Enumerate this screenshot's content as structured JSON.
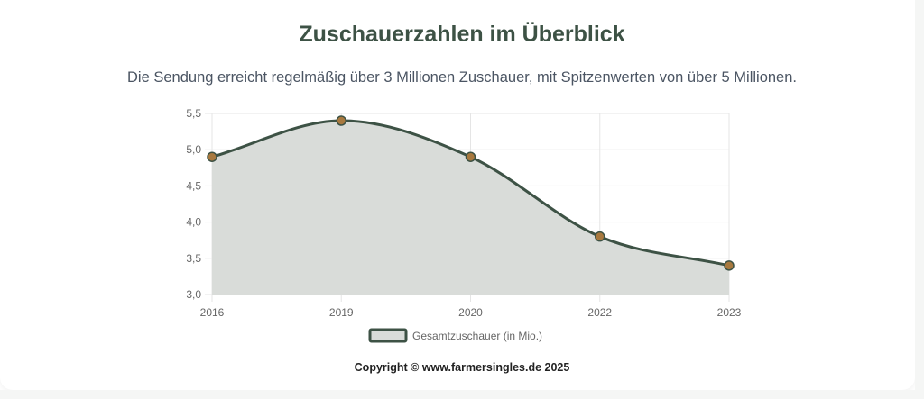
{
  "page": {
    "title": "Zuschauerzahlen im Überblick",
    "subtitle": "Die Sendung erreicht regelmäßig über 3 Millionen Zuschauer, mit Spitzenwerten von über 5 Millionen.",
    "copyright": "Copyright © www.farmersingles.de 2025"
  },
  "chart_data": {
    "type": "area",
    "title": "",
    "xlabel": "",
    "ylabel": "",
    "x": [
      2016,
      2019,
      2020,
      2022,
      2023
    ],
    "x_ticks": [
      "2016",
      "2019",
      "2020",
      "2022",
      "2023"
    ],
    "x_scale": "categorical",
    "ylim": [
      3.0,
      5.5
    ],
    "y_ticks": [
      "3,0",
      "3,5",
      "4,0",
      "4,5",
      "5,0",
      "5,5"
    ],
    "series": [
      {
        "name": "Gesamtzuschauer (in Mio.)",
        "values": [
          4.9,
          5.4,
          4.9,
          3.8,
          3.4
        ],
        "line_color": "#3d5245",
        "fill_color": "#d9dcd9",
        "point_color": "#a8793f"
      }
    ],
    "grid": true,
    "legend": "bottom"
  }
}
